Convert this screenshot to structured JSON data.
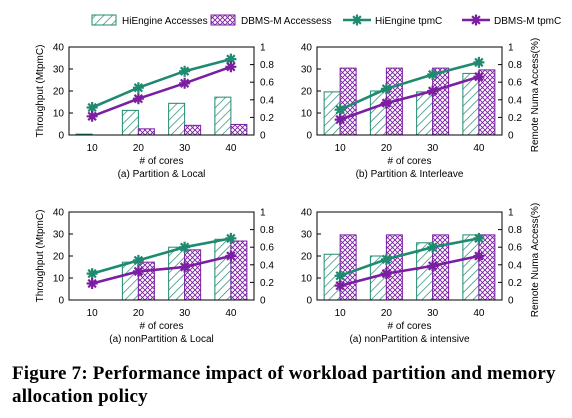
{
  "caption": "Figure 7: Performance impact of workload partition and memory allocation policy",
  "colors": {
    "hiengine": "#1f8a70",
    "dbmsm": "#7b1fa2"
  },
  "legend": [
    {
      "label": "HiEngine Accesses",
      "kind": "bar",
      "series": "hiengine"
    },
    {
      "label": "DBMS-M Accessess",
      "kind": "bar",
      "series": "dbmsm"
    },
    {
      "label": "HiEngine tpmC",
      "kind": "line",
      "series": "hiengine"
    },
    {
      "label": "DBMS-M tpmC",
      "kind": "line",
      "series": "dbmsm"
    }
  ],
  "chart_data": [
    {
      "type": "bar+line",
      "title": "(a) Partition & Local",
      "xlabel": "# of cores",
      "ylabel": "Throughput (MtpmC)",
      "y2label": "",
      "categories": [
        "10",
        "20",
        "30",
        "40"
      ],
      "ylim": [
        0,
        40
      ],
      "yticks": [
        "0",
        "10",
        "20",
        "30",
        "40"
      ],
      "y2lim": [
        0,
        1
      ],
      "y2ticks": [
        "0",
        "0.2",
        "0.4",
        "0.6",
        "0.8",
        "1"
      ],
      "bars": [
        {
          "series": "hiengine",
          "values": [
            0.01,
            0.28,
            0.36,
            0.43
          ]
        },
        {
          "series": "dbmsm",
          "values": [
            0.0,
            0.07,
            0.11,
            0.12
          ]
        }
      ],
      "lines": [
        {
          "series": "hiengine",
          "values": [
            12.5,
            21.5,
            29.0,
            34.5
          ]
        },
        {
          "series": "dbmsm",
          "values": [
            8.5,
            16.5,
            23.5,
            31.0
          ]
        }
      ]
    },
    {
      "type": "bar+line",
      "title": "(b) Partition & Interleave",
      "xlabel": "# of cores",
      "ylabel": "",
      "y2label": "Remote Numa Access(%)",
      "categories": [
        "10",
        "20",
        "30",
        "40"
      ],
      "ylim": [
        0,
        40
      ],
      "yticks": [
        "0",
        "10",
        "20",
        "30",
        "40"
      ],
      "y2lim": [
        0,
        1
      ],
      "y2ticks": [
        "0",
        "0.2",
        "0.4",
        "0.6",
        "0.8",
        "1"
      ],
      "bars": [
        {
          "series": "hiengine",
          "values": [
            0.49,
            0.5,
            0.49,
            0.7
          ]
        },
        {
          "series": "dbmsm",
          "values": [
            0.76,
            0.76,
            0.76,
            0.74
          ]
        }
      ],
      "lines": [
        {
          "series": "hiengine",
          "values": [
            11.5,
            21.0,
            27.5,
            33.0
          ]
        },
        {
          "series": "dbmsm",
          "values": [
            7.0,
            14.5,
            20.0,
            26.5
          ]
        }
      ]
    },
    {
      "type": "bar+line",
      "title": "(a) nonPartition & Local",
      "xlabel": "# of cores",
      "ylabel": "Throughput (MtpmC)",
      "y2label": "",
      "categories": [
        "10",
        "20",
        "30",
        "40"
      ],
      "ylim": [
        0,
        40
      ],
      "yticks": [
        "0",
        "10",
        "20",
        "30",
        "40"
      ],
      "y2lim": [
        0,
        1
      ],
      "y2ticks": [
        "0",
        "0.2",
        "0.4",
        "0.6",
        "0.8",
        "1"
      ],
      "bars": [
        {
          "series": "hiengine",
          "values": [
            0.0,
            0.43,
            0.6,
            0.69
          ]
        },
        {
          "series": "dbmsm",
          "values": [
            0.0,
            0.43,
            0.57,
            0.67
          ]
        }
      ],
      "lines": [
        {
          "series": "hiengine",
          "values": [
            12.0,
            18.0,
            24.0,
            28.0
          ]
        },
        {
          "series": "dbmsm",
          "values": [
            7.5,
            13.0,
            15.0,
            20.0
          ]
        }
      ]
    },
    {
      "type": "bar+line",
      "title": "(a) nonPartition & intensive",
      "xlabel": "# of cores",
      "ylabel": "",
      "y2label": "Remote Numa Access(%)",
      "categories": [
        "10",
        "20",
        "30",
        "40"
      ],
      "ylim": [
        0,
        40
      ],
      "yticks": [
        "0",
        "10",
        "20",
        "30",
        "40"
      ],
      "y2lim": [
        0,
        1
      ],
      "y2ticks": [
        "0",
        "0.2",
        "0.4",
        "0.6",
        "0.8",
        "1"
      ],
      "bars": [
        {
          "series": "hiengine",
          "values": [
            0.52,
            0.5,
            0.65,
            0.74
          ]
        },
        {
          "series": "dbmsm",
          "values": [
            0.74,
            0.74,
            0.74,
            0.74
          ]
        }
      ],
      "lines": [
        {
          "series": "hiengine",
          "values": [
            11.0,
            18.5,
            24.0,
            28.0
          ]
        },
        {
          "series": "dbmsm",
          "values": [
            6.5,
            12.0,
            15.5,
            20.0
          ]
        }
      ]
    }
  ]
}
